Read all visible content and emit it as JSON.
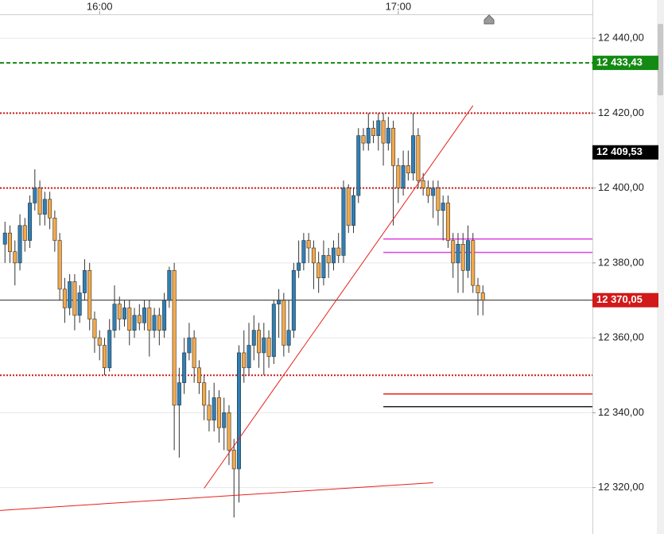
{
  "chart_data": {
    "type": "candlestick",
    "x": [
      "15:41",
      "15:42",
      "15:43",
      "15:44",
      "15:45",
      "15:46",
      "15:47",
      "15:48",
      "15:49",
      "15:50",
      "15:51",
      "15:52",
      "15:53",
      "15:54",
      "15:55",
      "15:56",
      "15:57",
      "15:58",
      "15:59",
      "16:00",
      "16:01",
      "16:02",
      "16:03",
      "16:04",
      "16:05",
      "16:06",
      "16:07",
      "16:08",
      "16:09",
      "16:10",
      "16:11",
      "16:12",
      "16:13",
      "16:14",
      "16:15",
      "16:16",
      "16:17",
      "16:18",
      "16:19",
      "16:20",
      "16:21",
      "16:22",
      "16:23",
      "16:24",
      "16:25",
      "16:26",
      "16:27",
      "16:28",
      "16:29",
      "16:30",
      "16:31",
      "16:32",
      "16:33",
      "16:34",
      "16:35",
      "16:36",
      "16:37",
      "16:38",
      "16:39",
      "16:40",
      "16:41",
      "16:42",
      "16:43",
      "16:44",
      "16:45",
      "16:46",
      "16:47",
      "16:48",
      "16:49",
      "16:50",
      "16:51",
      "16:52",
      "16:53",
      "16:54",
      "16:55",
      "16:56",
      "16:57",
      "16:58",
      "16:59",
      "17:00",
      "17:01",
      "17:02",
      "17:03",
      "17:04",
      "17:05",
      "17:06",
      "17:07",
      "17:08",
      "17:09",
      "17:10",
      "17:11",
      "17:12",
      "17:13",
      "17:14",
      "17:15",
      "17:16",
      "17:17"
    ],
    "open": [
      12385,
      12388,
      12383,
      12380,
      12390,
      12386,
      12396,
      12400,
      12393,
      12397,
      12392,
      12386,
      12373,
      12368,
      12375,
      12366,
      12372,
      12378,
      12365,
      12360,
      12358,
      12352,
      12362,
      12369,
      12365,
      12368,
      12362,
      12366,
      12364,
      12368,
      12362,
      12366,
      12362,
      12370,
      12378,
      12342,
      12348,
      12356,
      12360,
      12352,
      12348,
      12342,
      12338,
      12344,
      12336,
      12340,
      12330,
      12325,
      12356,
      12352,
      12358,
      12362,
      12356,
      12360,
      12355,
      12369,
      12370,
      12358,
      12362,
      12378,
      12380,
      12386,
      12384,
      12380,
      12376,
      12382,
      12380,
      12384,
      12382,
      12400,
      12390,
      12398,
      12414,
      12412,
      12416,
      12414,
      12418,
      12412,
      12416,
      12406,
      12400,
      12406,
      12404,
      12414,
      12402,
      12400,
      12398,
      12400,
      12394,
      12396,
      12386,
      12380,
      12385,
      12378,
      12386,
      12374,
      12372
    ],
    "high": [
      12391,
      12390,
      12386,
      12393,
      12392,
      12398,
      12405,
      12402,
      12399,
      12399,
      12394,
      12388,
      12376,
      12377,
      12377,
      12374,
      12381,
      12380,
      12367,
      12362,
      12360,
      12365,
      12374,
      12371,
      12370,
      12370,
      12368,
      12369,
      12370,
      12370,
      12368,
      12368,
      12372,
      12379,
      12380,
      12352,
      12360,
      12364,
      12362,
      12354,
      12350,
      12346,
      12348,
      12346,
      12344,
      12342,
      12333,
      12358,
      12362,
      12364,
      12366,
      12364,
      12364,
      12362,
      12370,
      12373,
      12372,
      12370,
      12380,
      12386,
      12388,
      12388,
      12386,
      12383,
      12386,
      12384,
      12386,
      12388,
      12402,
      12401,
      12400,
      12416,
      12416,
      12420,
      12418,
      12420,
      12420,
      12419,
      12418,
      12408,
      12410,
      12410,
      12420,
      12416,
      12404,
      12402,
      12402,
      12402,
      12398,
      12398,
      12388,
      12388,
      12388,
      12390,
      12388,
      12376,
      12374
    ],
    "low": [
      12380,
      12380,
      12374,
      12378,
      12383,
      12384,
      12394,
      12390,
      12390,
      12389,
      12383,
      12370,
      12364,
      12366,
      12362,
      12364,
      12370,
      12362,
      12356,
      12354,
      12350,
      12351,
      12360,
      12362,
      12363,
      12358,
      12360,
      12362,
      12362,
      12355,
      12360,
      12358,
      12360,
      12368,
      12330,
      12328,
      12345,
      12354,
      12348,
      12345,
      12338,
      12335,
      12335,
      12332,
      12330,
      12326,
      12312,
      12316,
      12348,
      12350,
      12354,
      12352,
      12350,
      12352,
      12353,
      12360,
      12355,
      12356,
      12360,
      12376,
      12378,
      12380,
      12373,
      12372,
      12374,
      12376,
      12378,
      12380,
      12380,
      12388,
      12388,
      12396,
      12410,
      12410,
      12412,
      12410,
      12406,
      12410,
      12390,
      12396,
      12398,
      12402,
      12402,
      12400,
      12398,
      12396,
      12392,
      12390,
      12386,
      12384,
      12376,
      12372,
      12372,
      12376,
      12372,
      12366,
      12366
    ],
    "close": [
      12388,
      12383,
      12380,
      12390,
      12386,
      12396,
      12400,
      12393,
      12397,
      12392,
      12386,
      12373,
      12368,
      12375,
      12366,
      12372,
      12378,
      12365,
      12360,
      12358,
      12352,
      12362,
      12369,
      12365,
      12368,
      12362,
      12366,
      12364,
      12368,
      12362,
      12366,
      12362,
      12370,
      12378,
      12342,
      12348,
      12356,
      12360,
      12352,
      12348,
      12342,
      12338,
      12344,
      12336,
      12340,
      12330,
      12325,
      12356,
      12352,
      12358,
      12362,
      12356,
      12360,
      12355,
      12369,
      12370,
      12358,
      12362,
      12378,
      12380,
      12386,
      12384,
      12380,
      12376,
      12382,
      12380,
      12384,
      12382,
      12400,
      12390,
      12398,
      12414,
      12412,
      12416,
      12414,
      12418,
      12412,
      12416,
      12406,
      12400,
      12406,
      12404,
      12414,
      12402,
      12400,
      12398,
      12400,
      12394,
      12396,
      12386,
      12380,
      12385,
      12378,
      12386,
      12374,
      12372,
      12370.05
    ],
    "up_color": "#2f7fb5",
    "down_color": "#f3a94a",
    "xlim": [
      "15:40",
      "17:39"
    ],
    "xticks": [
      "16:00",
      "17:00"
    ],
    "ylim": [
      12307.6,
      12446.4
    ],
    "yticks": [
      {
        "value": 12320,
        "label": "12 320,00"
      },
      {
        "value": 12340,
        "label": "12 340,00"
      },
      {
        "value": 12360,
        "label": "12 360,00"
      },
      {
        "value": 12380,
        "label": "12 380,00"
      },
      {
        "value": 12400,
        "label": "12 400,00"
      },
      {
        "value": 12420,
        "label": "12 420,00"
      },
      {
        "value": 12440,
        "label": "12 440,00"
      }
    ],
    "grid": true,
    "levels": [
      {
        "value": 12433.43,
        "color": "#138a13",
        "style": "dashed"
      },
      {
        "value": 12420,
        "color": "#d11a1a",
        "style": "dotted"
      },
      {
        "value": 12400,
        "color": "#d11a1a",
        "style": "dotted"
      },
      {
        "value": 12350,
        "color": "#d11a1a",
        "style": "dotted"
      },
      {
        "value": 12370.05,
        "color": "#222222",
        "style": "solid"
      },
      {
        "value": 12386.4,
        "color": "#e040e0",
        "style": "solid",
        "start": "16:57"
      },
      {
        "value": 12382.8,
        "color": "#e040e0",
        "style": "solid",
        "start": "16:57"
      },
      {
        "value": 12345,
        "color": "#e8201a",
        "style": "solid",
        "start": "16:57"
      },
      {
        "value": 12341.6,
        "color": "#222222",
        "style": "solid",
        "start": "16:57"
      }
    ],
    "trendlines": [
      {
        "x": [
          "16:21",
          "17:15"
        ],
        "y": [
          12319.8,
          12422.0
        ],
        "color": "#e8201a"
      },
      {
        "x": [
          "15:40",
          "17:07"
        ],
        "y": [
          12313.9,
          12321.3
        ],
        "color": "#e8201a"
      }
    ],
    "price_labels": [
      {
        "value": 12433.43,
        "label": "12 433,43",
        "background": "#138a13"
      },
      {
        "value": 12409.53,
        "label": "12 409,53",
        "background": "#000000"
      },
      {
        "value": 12370.05,
        "label": "12 370,05",
        "background": "#d11a1a"
      }
    ]
  }
}
